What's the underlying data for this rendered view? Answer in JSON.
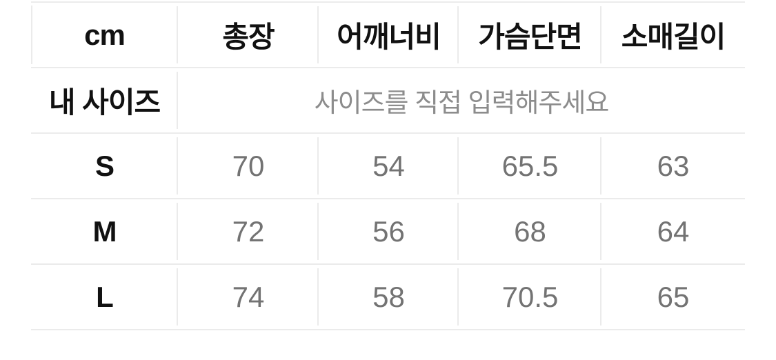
{
  "table": {
    "unit_header": "cm",
    "columns": [
      "총장",
      "어깨너비",
      "가슴단면",
      "소매길이"
    ],
    "my_size_row": {
      "label": "내 사이즈",
      "placeholder": "사이즈를 직접 입력해주세요"
    },
    "size_rows": [
      {
        "label": "S",
        "values": [
          "70",
          "54",
          "65.5",
          "63"
        ]
      },
      {
        "label": "M",
        "values": [
          "72",
          "56",
          "68",
          "64"
        ]
      },
      {
        "label": "L",
        "values": [
          "74",
          "58",
          "70.5",
          "65"
        ]
      }
    ]
  },
  "colors": {
    "line": "#ebebeb",
    "header_text": "#111111",
    "value_text": "#737373",
    "placeholder_text": "#8c8c8c",
    "bg": "#ffffff"
  }
}
